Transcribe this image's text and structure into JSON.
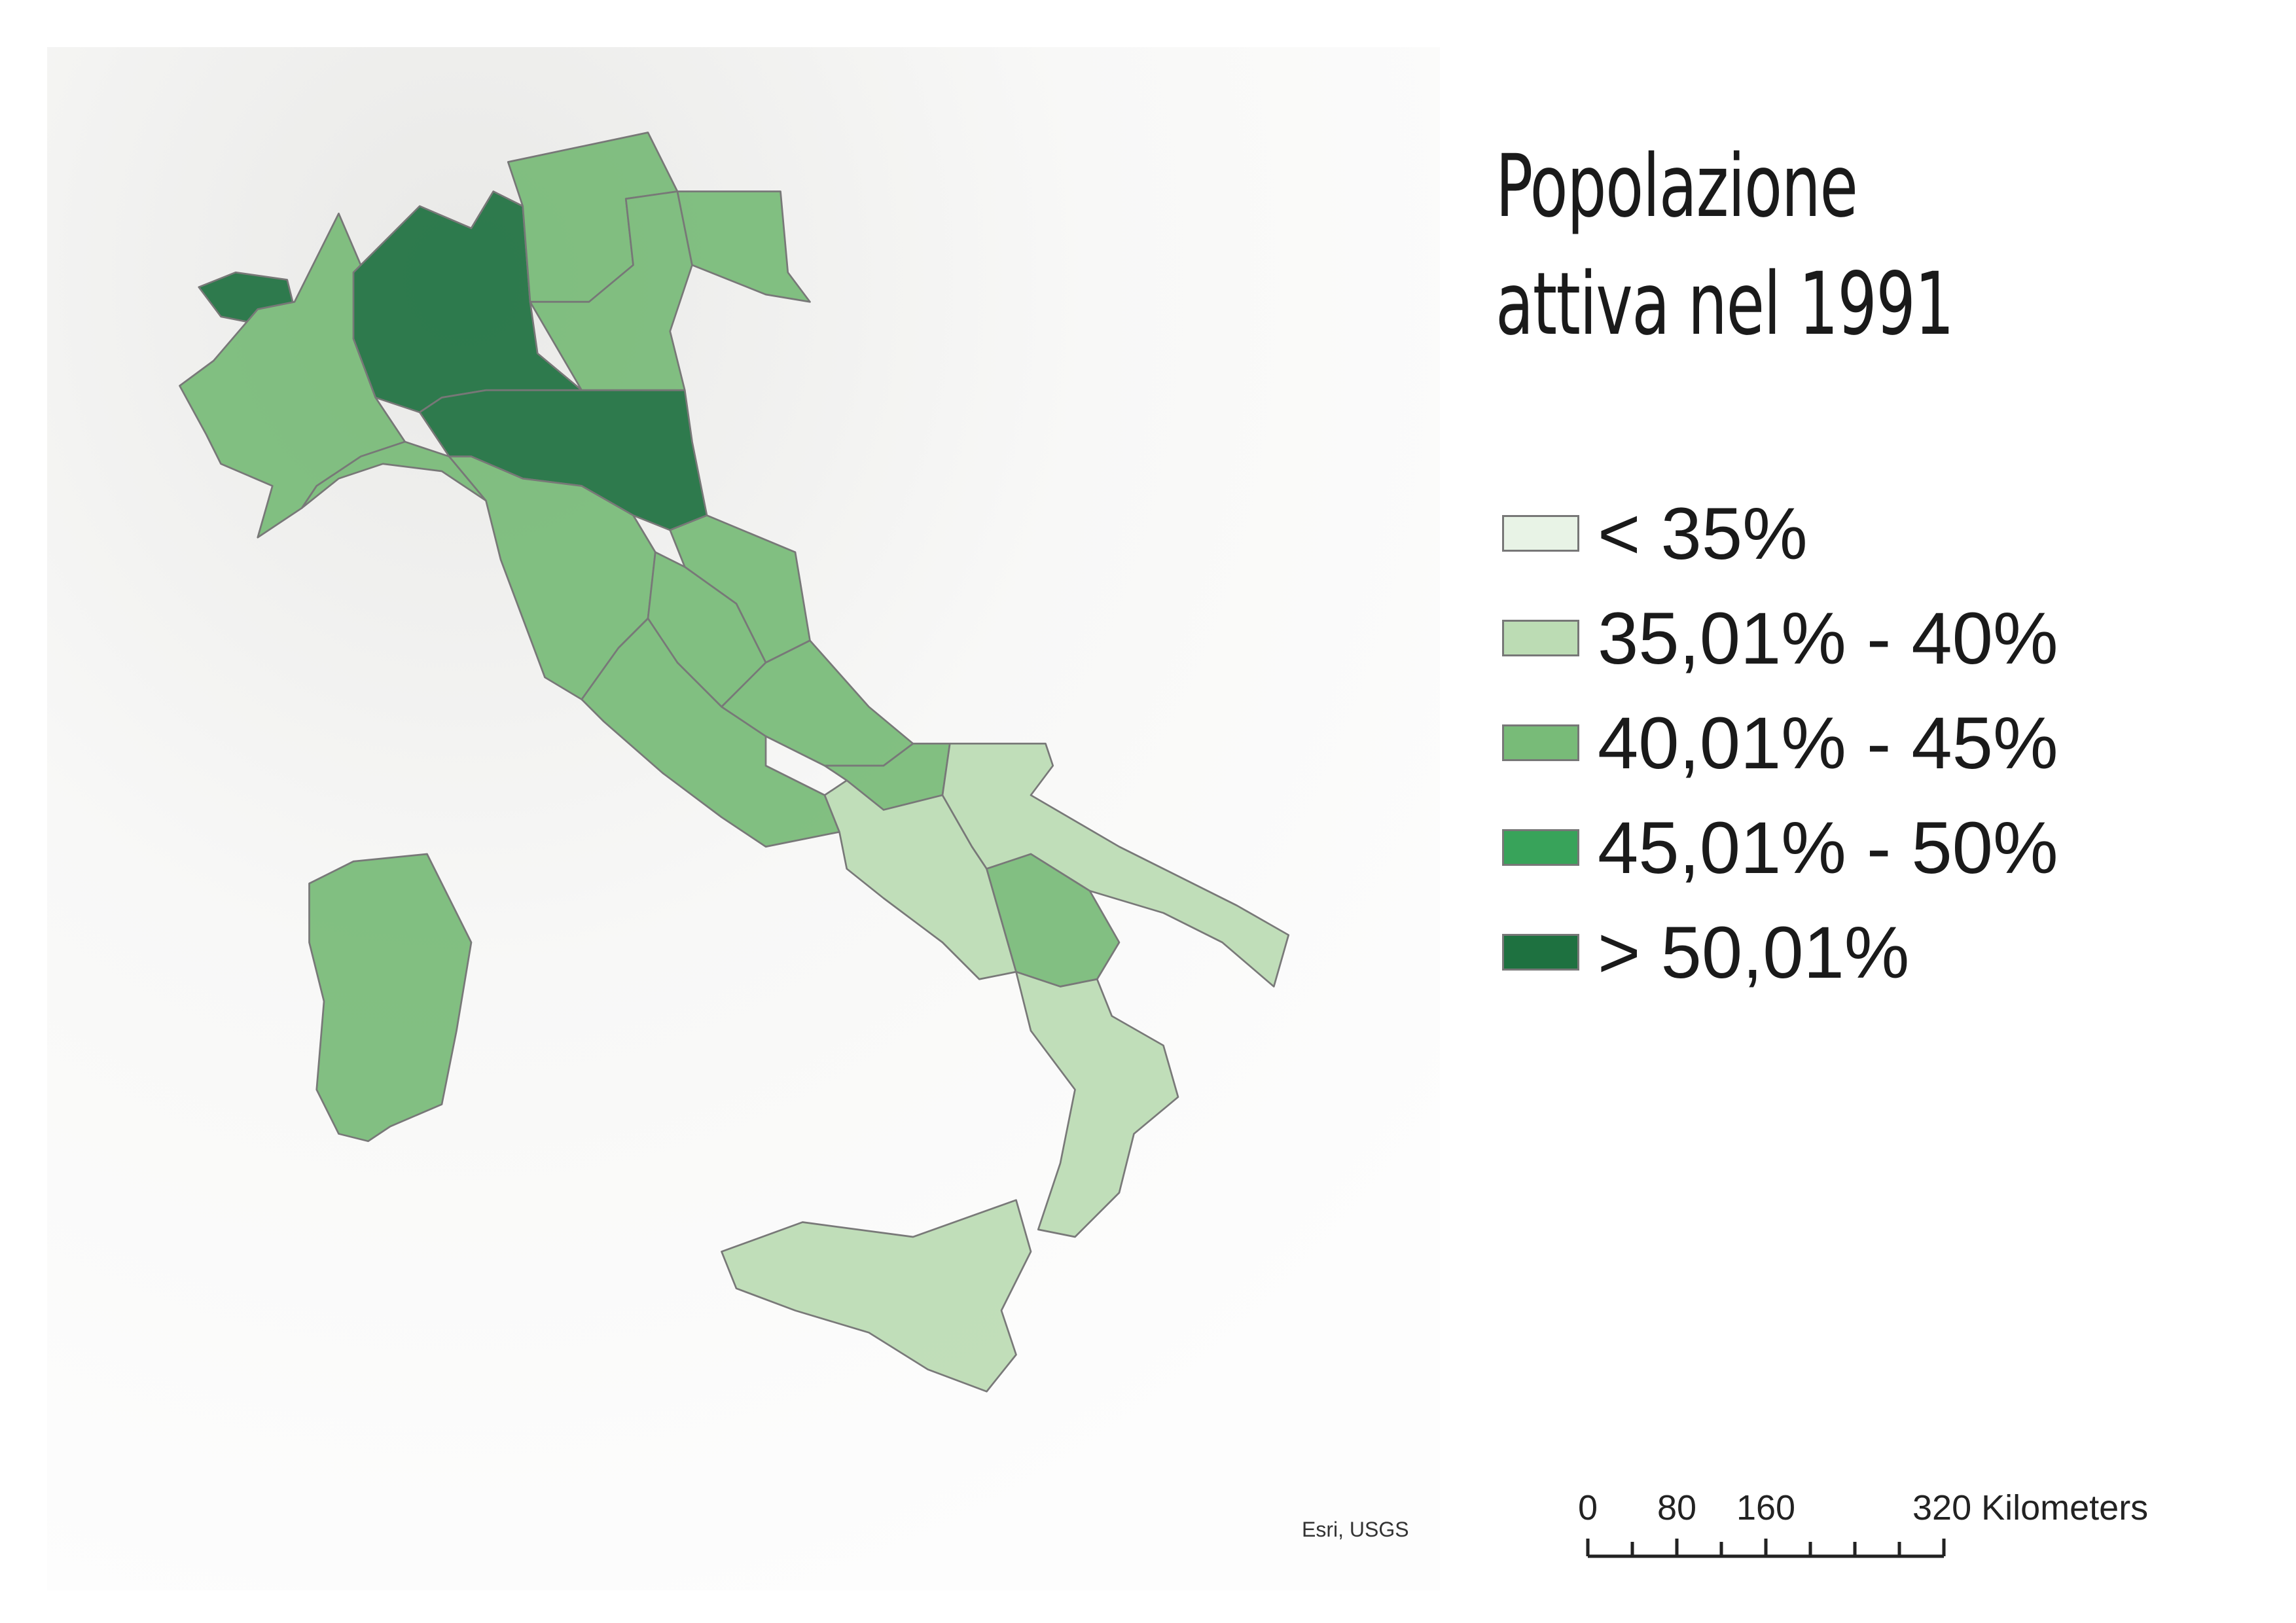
{
  "title": "Popolazione attiva nel 1991",
  "legend": {
    "entries": [
      {
        "label": "< 35%",
        "color": "#e8f3e6"
      },
      {
        "label": "35,01% - 40%",
        "color": "#bcdcb4"
      },
      {
        "label": "40,01% - 45%",
        "color": "#78bb78"
      },
      {
        "label": "45,01% - 50%",
        "color": "#38a35a"
      },
      {
        "label": "> 50,01%",
        "color": "#1e7140"
      }
    ]
  },
  "scale_bar": {
    "ticks": [
      0,
      80,
      160,
      {
        "value": 320,
        "label": "320 Kilometers"
      }
    ]
  },
  "attribution": "Esri, USGS"
}
